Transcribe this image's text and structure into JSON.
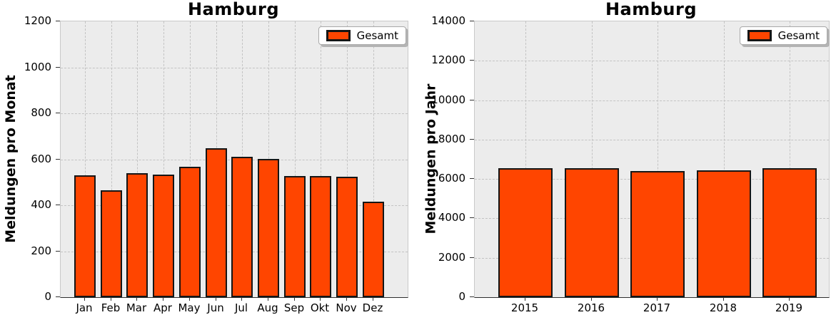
{
  "colors": {
    "bar_fill": "#ff4500",
    "bar_edge": "#151515",
    "plot_bg": "#ececec",
    "grid": "#c3c3c3",
    "legend_bg": "#ffffff"
  },
  "chart_data": [
    {
      "type": "bar",
      "title": "Hamburg",
      "categories": [
        "Jan",
        "Feb",
        "Mar",
        "Apr",
        "May",
        "Jun",
        "Jul",
        "Aug",
        "Sep",
        "Okt",
        "Nov",
        "Dez"
      ],
      "values": [
        529,
        466,
        538,
        532,
        568,
        647,
        612,
        603,
        527,
        527,
        523,
        417
      ],
      "xlabel": "",
      "ylabel": "Meldungen pro Monat",
      "ylim": [
        0,
        1200
      ],
      "ytick_step": 200,
      "grid": true,
      "legend": [
        "Gesamt"
      ],
      "legend_position": "upper right"
    },
    {
      "type": "bar",
      "title": "Hamburg",
      "categories": [
        "2015",
        "2016",
        "2017",
        "2018",
        "2019"
      ],
      "values": [
        6560,
        6530,
        6420,
        6450,
        6530
      ],
      "xlabel": "",
      "ylabel": "Meldungen pro Jahr",
      "ylim": [
        0,
        14000
      ],
      "ytick_step": 2000,
      "grid": true,
      "legend": [
        "Gesamt"
      ],
      "legend_position": "upper right"
    }
  ]
}
